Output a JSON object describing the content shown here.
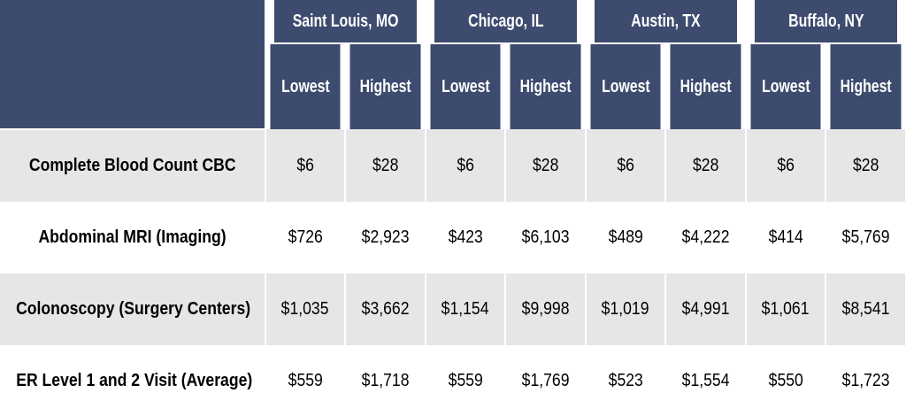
{
  "chart_data": {
    "type": "table",
    "cities": [
      "Saint Louis, MO",
      "Chicago, IL",
      "Austin, TX",
      "Buffalo, NY"
    ],
    "subheaders": [
      "Lowest",
      "Highest"
    ],
    "rows": [
      {
        "label": "Complete Blood Count CBC",
        "values": [
          "$6",
          "$28",
          "$6",
          "$28",
          "$6",
          "$28",
          "$6",
          "$28"
        ]
      },
      {
        "label": "Abdominal MRI (Imaging)",
        "values": [
          "$726",
          "$2,923",
          "$423",
          "$6,103",
          "$489",
          "$4,222",
          "$414",
          "$5,769"
        ]
      },
      {
        "label": "Colonoscopy (Surgery Centers)",
        "values": [
          "$1,035",
          "$3,662",
          "$1,154",
          "$9,998",
          "$1,019",
          "$4,991",
          "$1,061",
          "$8,541"
        ]
      },
      {
        "label": "ER Level 1 and 2 Visit (Average)",
        "values": [
          "$559",
          "$1,718",
          "$559",
          "$1,769",
          "$523",
          "$1,554",
          "$550",
          "$1,723"
        ]
      }
    ]
  },
  "colors": {
    "header_bg": "#3d4b6e",
    "header_text": "#ffffff",
    "row_shade": "#e6e6e6",
    "row_plain": "#ffffff"
  }
}
